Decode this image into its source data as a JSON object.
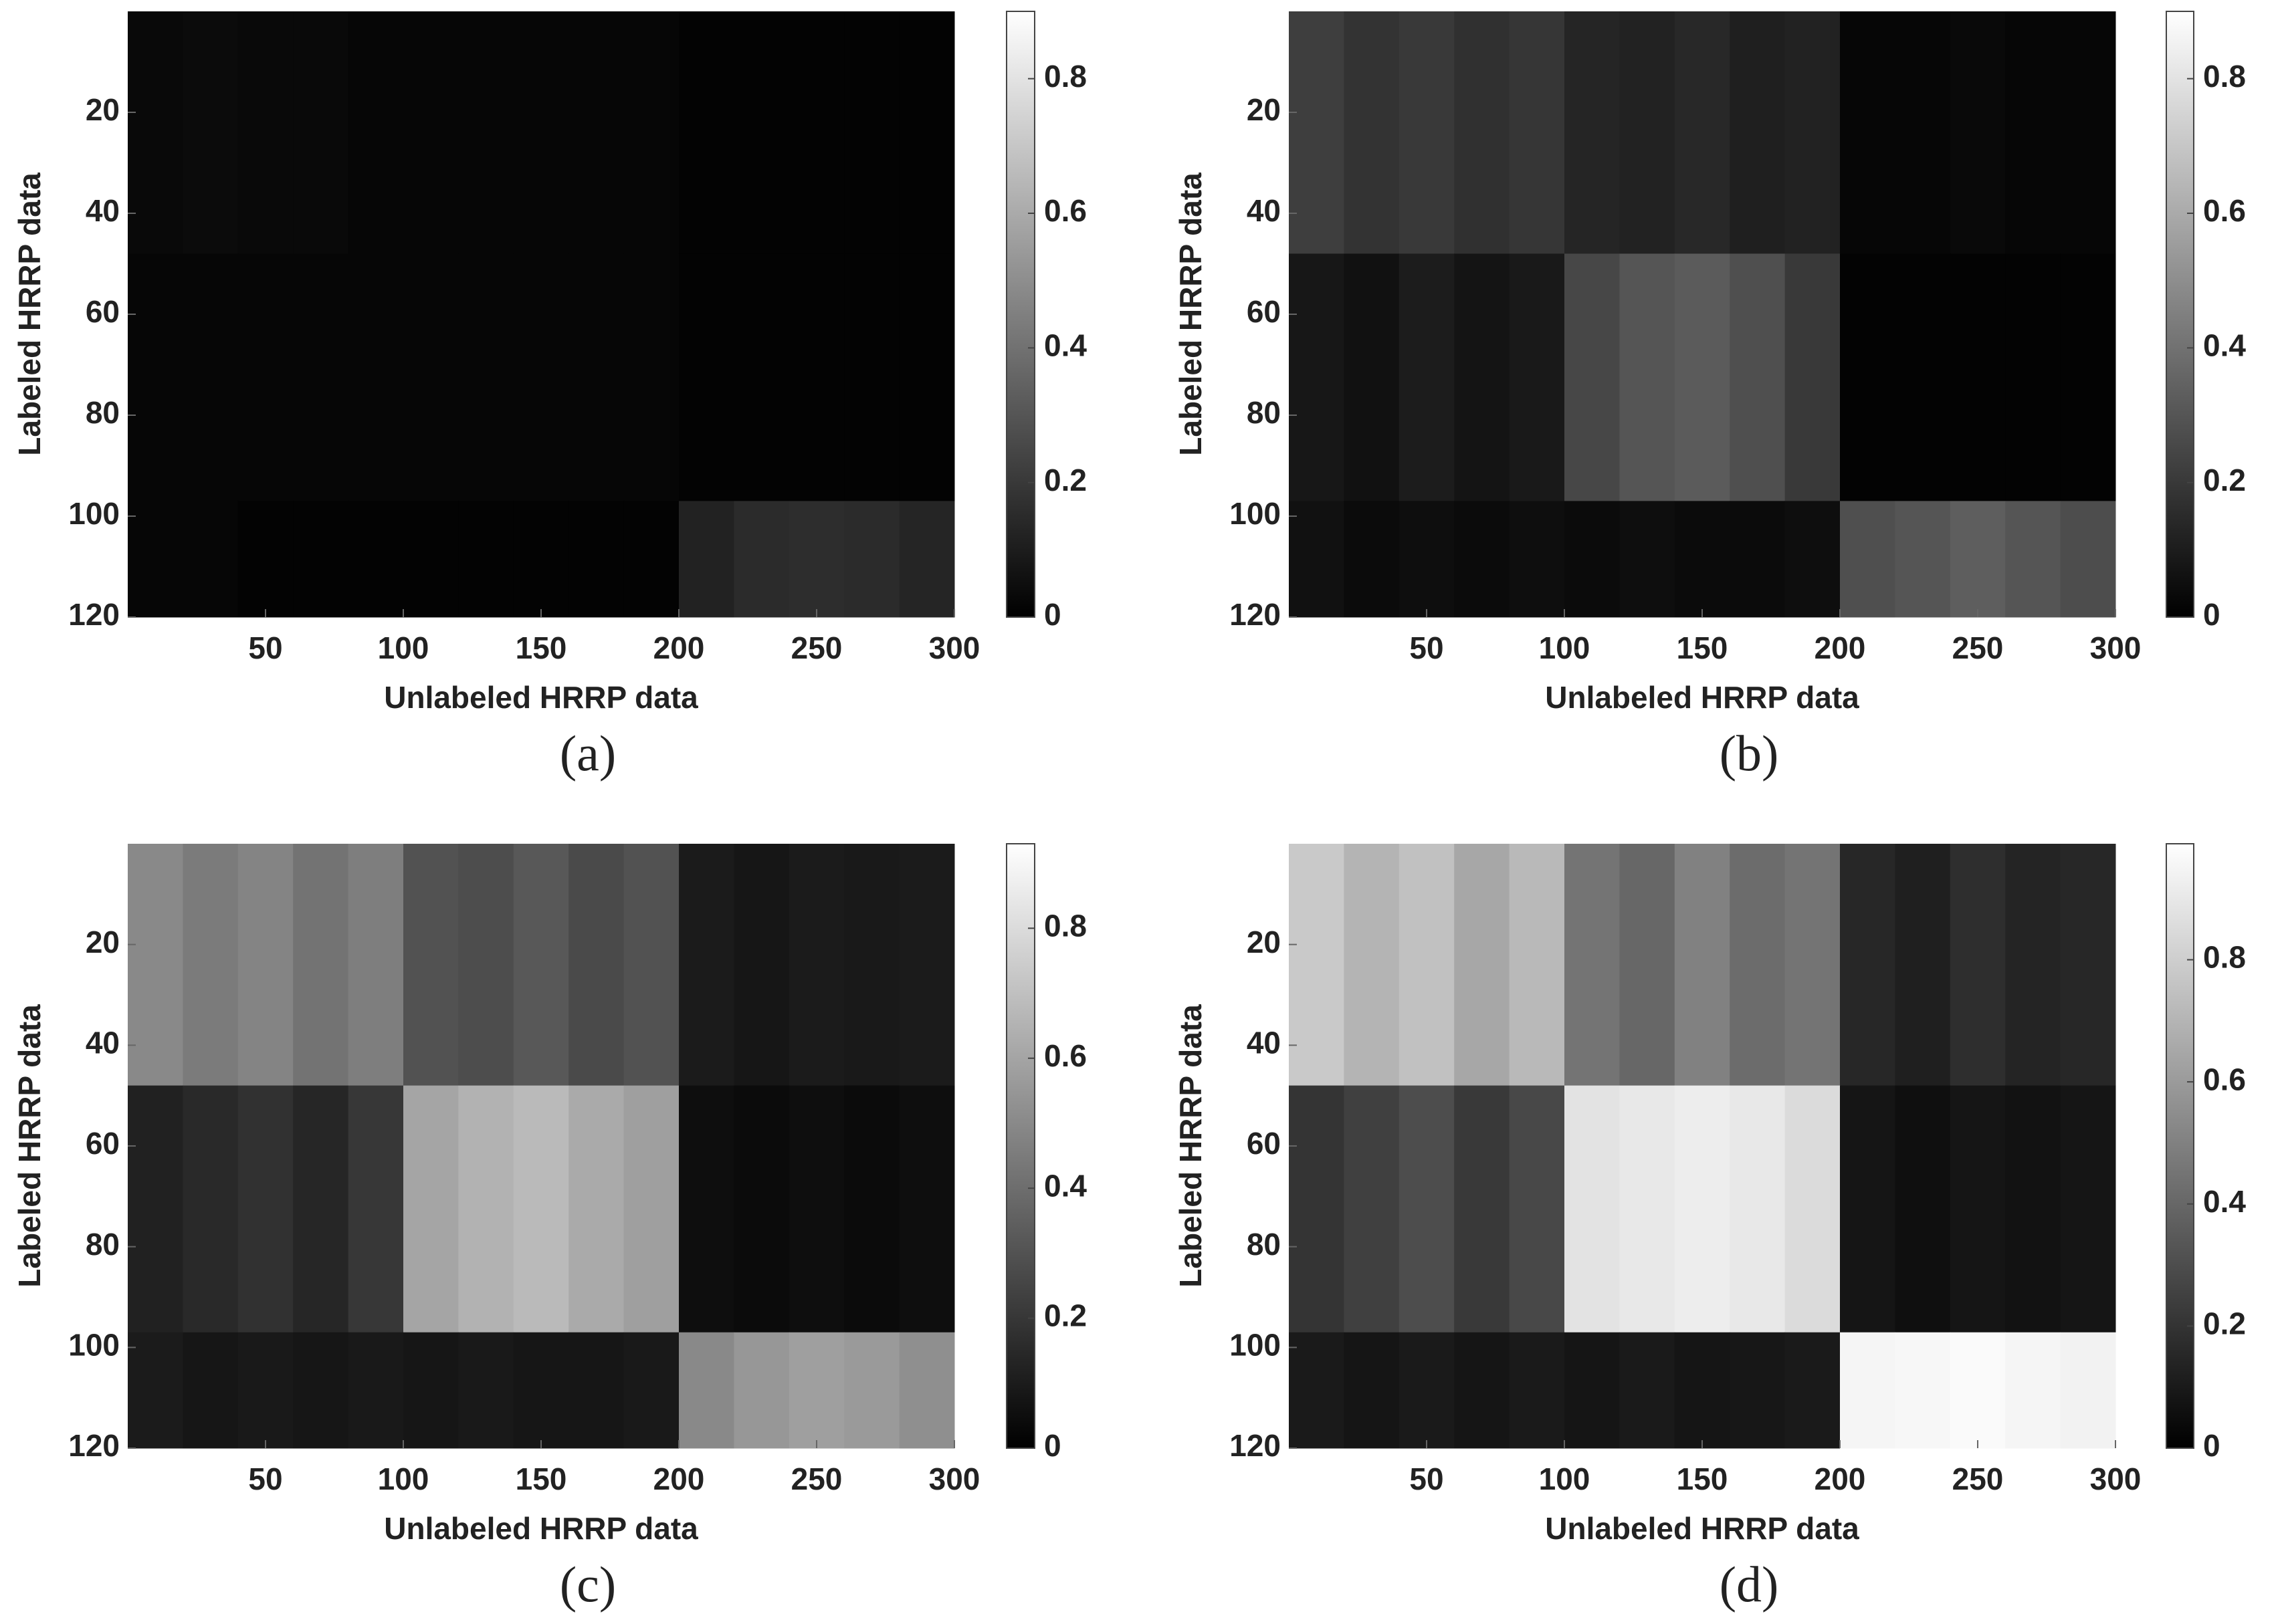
{
  "chart_data": [
    {
      "type": "heatmap",
      "caption": "(a)",
      "xlabel": "Unlabeled HRRP data",
      "ylabel": "Labeled HRRP data",
      "colormap": "gray",
      "x_bins": [
        0,
        20,
        40,
        60,
        80,
        100,
        120,
        140,
        160,
        180,
        200,
        220,
        240,
        260,
        280,
        300
      ],
      "y_bins": [
        0,
        48,
        97,
        120
      ],
      "values": [
        [
          0.03,
          0.04,
          0.03,
          0.03,
          0.02,
          0.02,
          0.02,
          0.02,
          0.02,
          0.02,
          0.01,
          0.01,
          0.01,
          0.01,
          0.01
        ],
        [
          0.02,
          0.02,
          0.02,
          0.02,
          0.02,
          0.02,
          0.02,
          0.02,
          0.02,
          0.02,
          0.01,
          0.01,
          0.01,
          0.01,
          0.01
        ],
        [
          0.02,
          0.02,
          0.01,
          0.01,
          0.01,
          0.01,
          0.01,
          0.01,
          0.01,
          0.01,
          0.12,
          0.15,
          0.16,
          0.15,
          0.13
        ]
      ],
      "xlim": [
        0,
        300
      ],
      "ylim": [
        0,
        120
      ],
      "y_reversed": true,
      "xticks": [
        50,
        100,
        150,
        200,
        250,
        300
      ],
      "yticks": [
        20,
        40,
        60,
        80,
        100,
        120
      ],
      "clim": [
        0,
        0.9
      ],
      "cticks": [
        0,
        0.2,
        0.4,
        0.6,
        0.8
      ]
    },
    {
      "type": "heatmap",
      "caption": "(b)",
      "xlabel": "Unlabeled HRRP data",
      "ylabel": "Labeled HRRP data",
      "colormap": "gray",
      "x_bins": [
        0,
        20,
        40,
        60,
        80,
        100,
        120,
        140,
        160,
        180,
        200,
        220,
        240,
        260,
        280,
        300
      ],
      "y_bins": [
        0,
        48,
        97,
        120
      ],
      "values": [
        [
          0.22,
          0.18,
          0.2,
          0.17,
          0.19,
          0.13,
          0.12,
          0.14,
          0.11,
          0.12,
          0.02,
          0.02,
          0.03,
          0.02,
          0.02
        ],
        [
          0.08,
          0.06,
          0.1,
          0.07,
          0.09,
          0.25,
          0.3,
          0.32,
          0.28,
          0.2,
          0.01,
          0.01,
          0.01,
          0.01,
          0.01
        ],
        [
          0.06,
          0.04,
          0.05,
          0.04,
          0.05,
          0.04,
          0.05,
          0.04,
          0.04,
          0.05,
          0.28,
          0.3,
          0.33,
          0.3,
          0.27
        ]
      ],
      "xlim": [
        0,
        300
      ],
      "ylim": [
        0,
        120
      ],
      "y_reversed": true,
      "xticks": [
        50,
        100,
        150,
        200,
        250,
        300
      ],
      "yticks": [
        20,
        40,
        60,
        80,
        100,
        120
      ],
      "clim": [
        0,
        0.9
      ],
      "cticks": [
        0,
        0.2,
        0.4,
        0.6,
        0.8
      ]
    },
    {
      "type": "heatmap",
      "caption": "(c)",
      "xlabel": "Unlabeled HRRP data",
      "ylabel": "Labeled HRRP data",
      "colormap": "gray",
      "x_bins": [
        0,
        20,
        40,
        60,
        80,
        100,
        120,
        140,
        160,
        180,
        200,
        220,
        240,
        260,
        280,
        300
      ],
      "y_bins": [
        0,
        48,
        97,
        120
      ],
      "values": [
        [
          0.5,
          0.45,
          0.48,
          0.42,
          0.46,
          0.3,
          0.28,
          0.32,
          0.27,
          0.3,
          0.1,
          0.08,
          0.1,
          0.09,
          0.1
        ],
        [
          0.12,
          0.15,
          0.18,
          0.14,
          0.2,
          0.6,
          0.65,
          0.68,
          0.62,
          0.58,
          0.05,
          0.04,
          0.05,
          0.04,
          0.05
        ],
        [
          0.1,
          0.08,
          0.09,
          0.08,
          0.09,
          0.08,
          0.09,
          0.08,
          0.08,
          0.09,
          0.5,
          0.55,
          0.58,
          0.56,
          0.52
        ]
      ],
      "xlim": [
        0,
        300
      ],
      "ylim": [
        0,
        120
      ],
      "y_reversed": true,
      "xticks": [
        50,
        100,
        150,
        200,
        250,
        300
      ],
      "yticks": [
        20,
        40,
        60,
        80,
        100,
        120
      ],
      "clim": [
        0,
        0.93
      ],
      "cticks": [
        0,
        0.2,
        0.4,
        0.6,
        0.8
      ]
    },
    {
      "type": "heatmap",
      "caption": "(d)",
      "xlabel": "Unlabeled HRRP data",
      "ylabel": "Labeled HRRP data",
      "colormap": "gray",
      "x_bins": [
        0,
        20,
        40,
        60,
        80,
        100,
        120,
        140,
        160,
        180,
        200,
        220,
        240,
        260,
        280,
        300
      ],
      "y_bins": [
        0,
        48,
        97,
        120
      ],
      "values": [
        [
          0.78,
          0.7,
          0.75,
          0.65,
          0.72,
          0.45,
          0.4,
          0.5,
          0.42,
          0.45,
          0.15,
          0.12,
          0.18,
          0.14,
          0.15
        ],
        [
          0.2,
          0.25,
          0.3,
          0.22,
          0.28,
          0.88,
          0.9,
          0.92,
          0.9,
          0.85,
          0.08,
          0.06,
          0.08,
          0.07,
          0.08
        ],
        [
          0.1,
          0.08,
          0.1,
          0.08,
          0.1,
          0.08,
          0.1,
          0.08,
          0.09,
          0.1,
          0.95,
          0.96,
          0.97,
          0.95,
          0.94
        ]
      ],
      "xlim": [
        0,
        300
      ],
      "ylim": [
        0,
        120
      ],
      "y_reversed": true,
      "xticks": [
        50,
        100,
        150,
        200,
        250,
        300
      ],
      "yticks": [
        20,
        40,
        60,
        80,
        100,
        120
      ],
      "clim": [
        0,
        0.99
      ],
      "cticks": [
        0,
        0.2,
        0.4,
        0.6,
        0.8
      ]
    }
  ]
}
